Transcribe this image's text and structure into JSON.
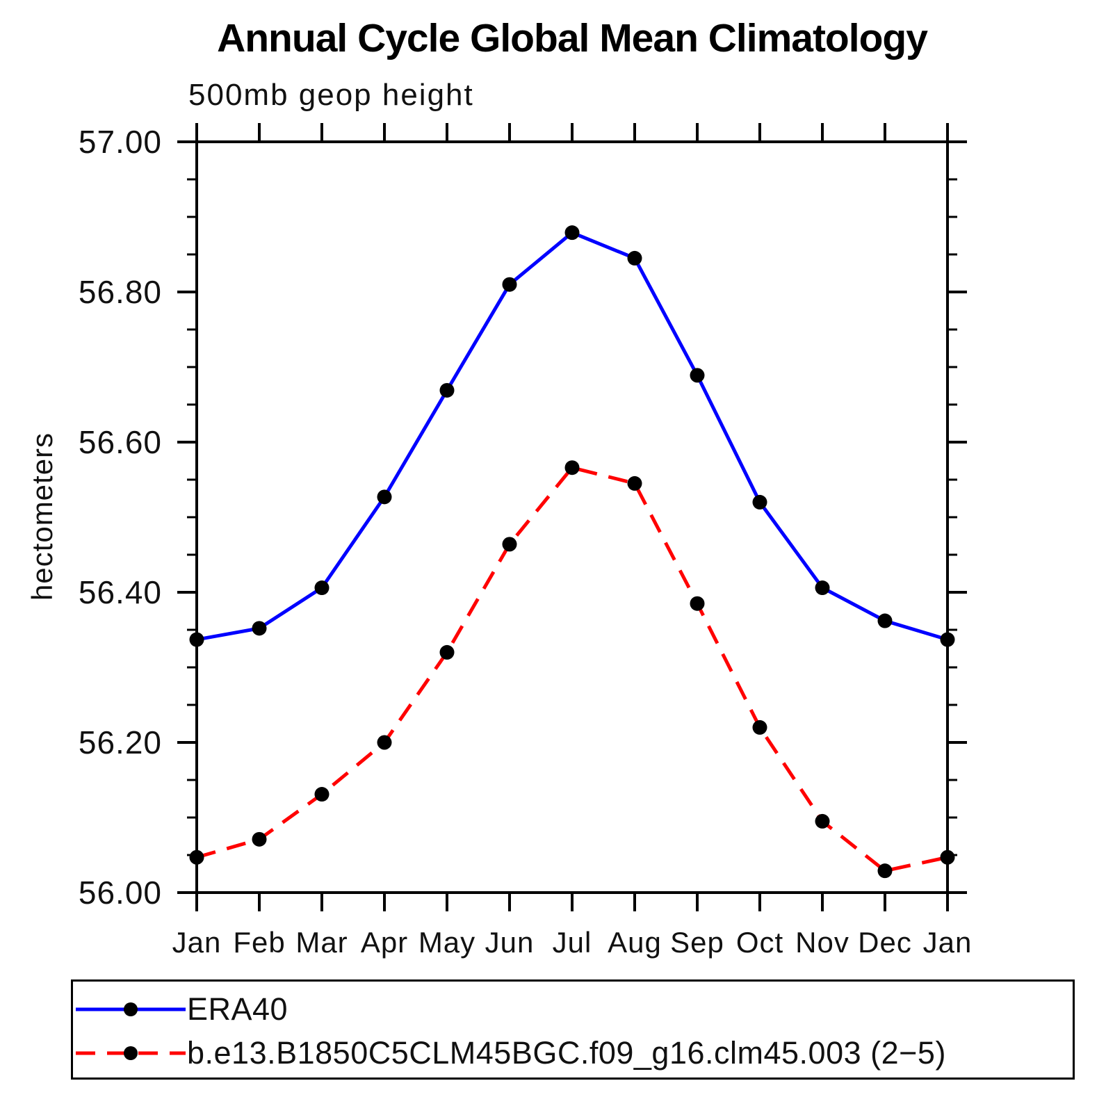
{
  "title": "Annual Cycle Global Mean Climatology",
  "subtitle": "500mb geop height",
  "ylabel": "hectometers",
  "chart_data": {
    "type": "line",
    "categories": [
      "Jan",
      "Feb",
      "Mar",
      "Apr",
      "May",
      "Jun",
      "Jul",
      "Aug",
      "Sep",
      "Oct",
      "Nov",
      "Dec",
      "Jan"
    ],
    "series": [
      {
        "name": "ERA40",
        "color": "#0000ff",
        "line_style": "solid",
        "marker": "filled-circle",
        "marker_color": "#000000",
        "values": [
          56.337,
          56.352,
          56.406,
          56.527,
          56.669,
          56.81,
          56.879,
          56.845,
          56.689,
          56.52,
          56.406,
          56.362,
          56.337
        ]
      },
      {
        "name": "b.e13.B1850C5CLM45BGC.f09_g16.clm45.003 (2−5)",
        "color": "#ff0000",
        "line_style": "dashed",
        "marker": "filled-circle",
        "marker_color": "#000000",
        "values": [
          56.047,
          56.071,
          56.131,
          56.2,
          56.32,
          56.464,
          56.566,
          56.545,
          56.385,
          56.22,
          56.095,
          56.029,
          56.047
        ]
      }
    ],
    "ylim": [
      56.0,
      57.0
    ],
    "yticks": [
      56.0,
      56.2,
      56.4,
      56.6,
      56.8,
      57.0
    ],
    "ytick_labels": [
      "56.00",
      "56.20",
      "56.40",
      "56.60",
      "56.80",
      "57.00"
    ],
    "minor_tick_interval": 0.05,
    "grid": false,
    "legend_position": "bottom",
    "axis_color": "#000000"
  }
}
